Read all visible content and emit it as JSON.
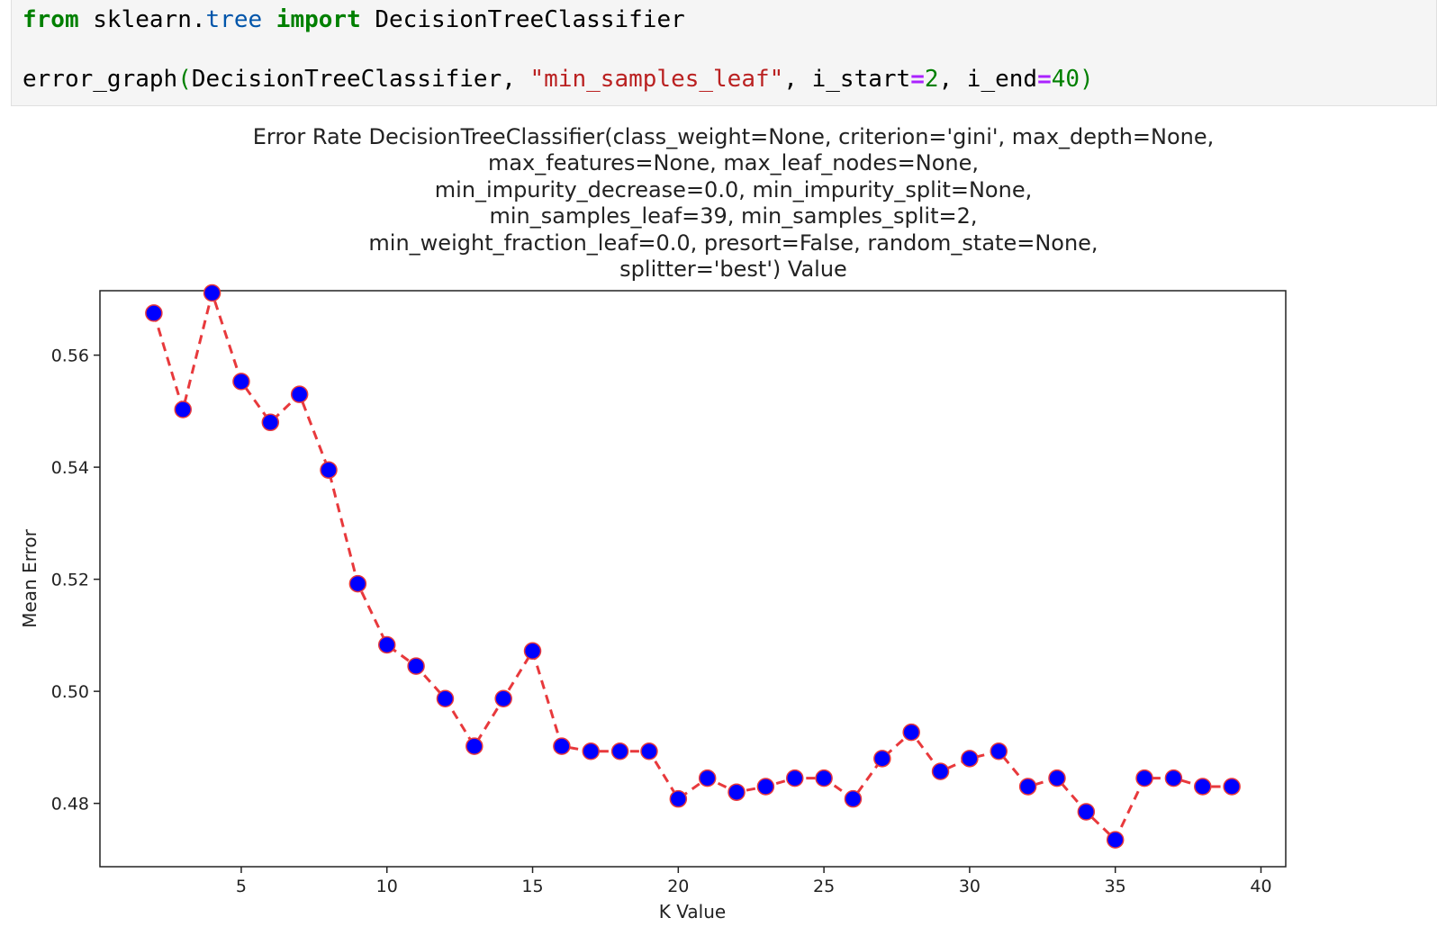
{
  "code_cell": {
    "line1": {
      "kw_from": "from",
      "module_a": " sklearn.",
      "module_b": "tree",
      "kw_import": "import",
      "name": " DecisionTreeClassifier"
    },
    "line2": {
      "func": "error_graph",
      "open_paren": "(",
      "arg1": "DecisionTreeClassifier, ",
      "arg2": "\"min_samples_leaf\"",
      "sep1": ", i_start",
      "eq1": "=",
      "val1": "2",
      "sep2": ", i_end",
      "eq2": "=",
      "val2": "40",
      "close_paren": ")"
    }
  },
  "chart_data": {
    "type": "line",
    "title_lines": [
      "Error Rate DecisionTreeClassifier(class_weight=None, criterion='gini', max_depth=None,",
      "max_features=None, max_leaf_nodes=None,",
      "min_impurity_decrease=0.0, min_impurity_split=None,",
      "min_samples_leaf=39, min_samples_split=2,",
      "min_weight_fraction_leaf=0.0, presort=False, random_state=None,",
      "splitter='best') Value"
    ],
    "xlabel": "K Value",
    "ylabel": "Mean Error",
    "xlim": [
      0.15,
      40.85
    ],
    "ylim": [
      0.4687,
      0.5715
    ],
    "xticks": [
      5,
      10,
      15,
      20,
      25,
      30,
      35,
      40
    ],
    "yticks": [
      0.48,
      0.5,
      0.52,
      0.54,
      0.56
    ],
    "line_color": "#e8393c",
    "line_style": "dashed",
    "marker_color": "#0000ff",
    "marker_edge_color": "#e8393c",
    "x": [
      2,
      3,
      4,
      5,
      6,
      7,
      8,
      9,
      10,
      11,
      12,
      13,
      14,
      15,
      16,
      17,
      18,
      19,
      20,
      21,
      22,
      23,
      24,
      25,
      26,
      27,
      28,
      29,
      30,
      31,
      32,
      33,
      34,
      35,
      36,
      37,
      38,
      39
    ],
    "y": [
      0.5675,
      0.5503,
      0.5711,
      0.5553,
      0.548,
      0.553,
      0.5395,
      0.5192,
      0.5083,
      0.5045,
      0.4987,
      0.4902,
      0.4987,
      0.5072,
      0.4902,
      0.4893,
      0.4893,
      0.4893,
      0.4808,
      0.4845,
      0.482,
      0.483,
      0.4845,
      0.4845,
      0.4808,
      0.488,
      0.4927,
      0.4857,
      0.488,
      0.4893,
      0.483,
      0.4845,
      0.4785,
      0.4735,
      0.4845,
      0.4845,
      0.483,
      0.483
    ]
  }
}
